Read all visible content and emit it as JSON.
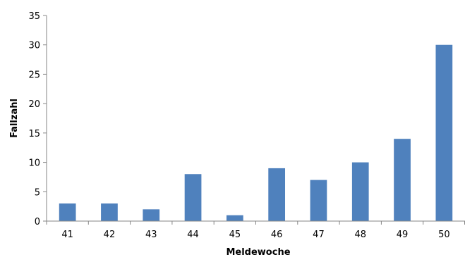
{
  "chart_data": {
    "type": "bar",
    "categories": [
      "41",
      "42",
      "43",
      "44",
      "45",
      "46",
      "47",
      "48",
      "49",
      "50"
    ],
    "values": [
      3,
      3,
      2,
      8,
      1,
      9,
      7,
      10,
      14,
      30
    ],
    "title": "",
    "xlabel": "Meldewoche",
    "ylabel": "Fallzahl",
    "ylim": [
      0,
      35
    ],
    "yticks": [
      "0",
      "5",
      "10",
      "15",
      "20",
      "25",
      "30",
      "35"
    ],
    "ytick_values": [
      0,
      5,
      10,
      15,
      20,
      25,
      30,
      35
    ],
    "bar_color": "#4F81BD",
    "axis_color": "#868686",
    "grid": false,
    "legend": "none"
  }
}
